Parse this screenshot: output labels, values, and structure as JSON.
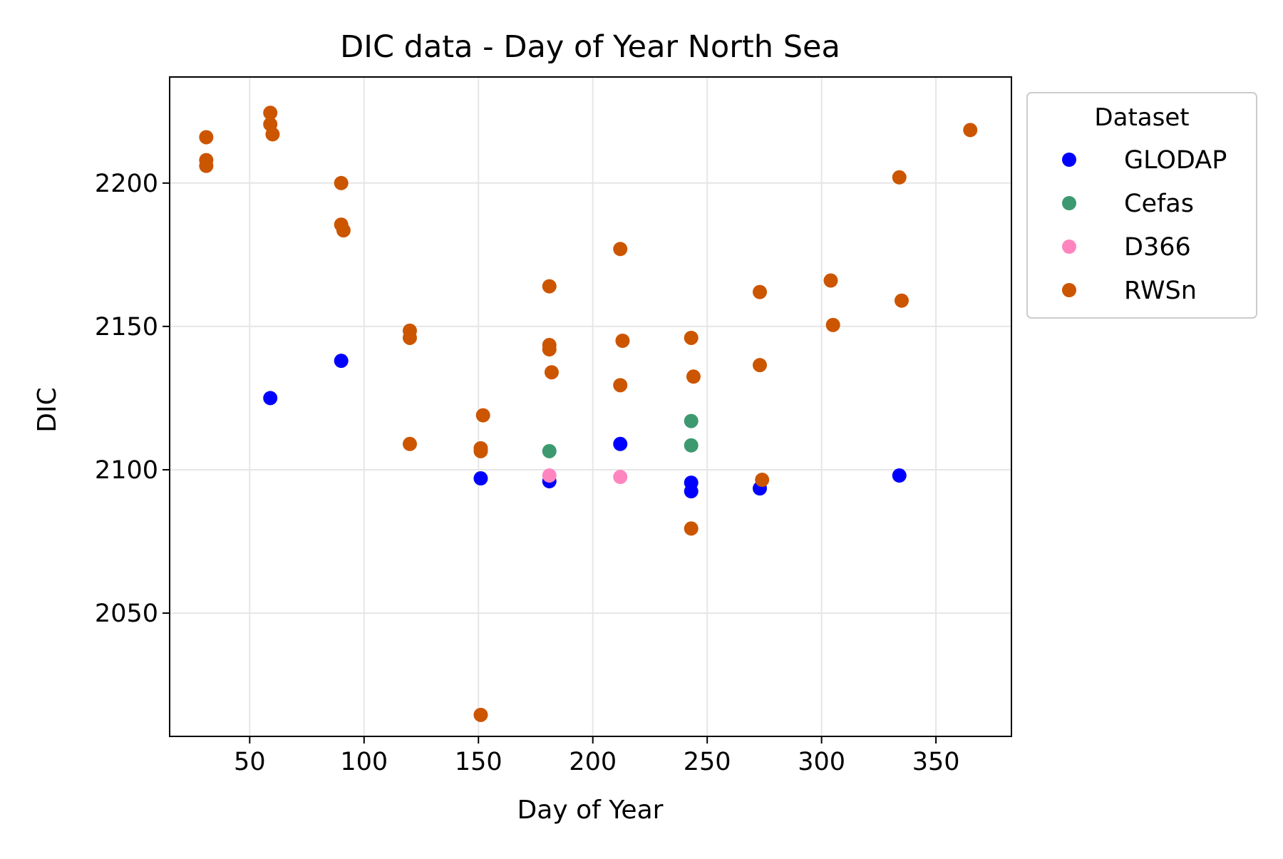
{
  "chart_data": {
    "type": "scatter",
    "title": "DIC data - Day of Year North Sea",
    "xlabel": "Day of Year",
    "ylabel": "DIC",
    "xlim": [
      15,
      383
    ],
    "ylim": [
      2007,
      2237
    ],
    "xticks": [
      50,
      100,
      150,
      200,
      250,
      300,
      350
    ],
    "yticks": [
      2050,
      2100,
      2150,
      2200
    ],
    "grid": true,
    "legend": {
      "title": "Dataset",
      "placement": "upper-right-outside"
    },
    "series": [
      {
        "name": "GLODAP",
        "color": "#0000ff",
        "points": [
          [
            59,
            2125
          ],
          [
            90,
            2138
          ],
          [
            151,
            2097
          ],
          [
            181,
            2096
          ],
          [
            212,
            2109
          ],
          [
            243,
            2095.5
          ],
          [
            243,
            2092.5
          ],
          [
            273,
            2093.5
          ],
          [
            334,
            2098
          ]
        ]
      },
      {
        "name": "Cefas",
        "color": "#3d9970",
        "points": [
          [
            181,
            2106.5
          ],
          [
            243,
            2117
          ],
          [
            243,
            2108.5
          ]
        ]
      },
      {
        "name": "D366",
        "color": "#ff85c0",
        "points": [
          [
            181,
            2098
          ],
          [
            212,
            2097.5
          ]
        ]
      },
      {
        "name": "RWSn",
        "color": "#cc5500",
        "points": [
          [
            31,
            2216
          ],
          [
            31,
            2208
          ],
          [
            31,
            2206
          ],
          [
            59,
            2224.5
          ],
          [
            59,
            2220.5
          ],
          [
            60,
            2217
          ],
          [
            90,
            2200
          ],
          [
            90,
            2185.5
          ],
          [
            91,
            2183.5
          ],
          [
            120,
            2148.5
          ],
          [
            120,
            2146
          ],
          [
            120,
            2109
          ],
          [
            151,
            2107.5
          ],
          [
            151,
            2106.5
          ],
          [
            152,
            2119
          ],
          [
            151,
            2014.5
          ],
          [
            181,
            2164
          ],
          [
            181,
            2143.5
          ],
          [
            181,
            2142
          ],
          [
            182,
            2134
          ],
          [
            212,
            2177
          ],
          [
            213,
            2145
          ],
          [
            212,
            2129.5
          ],
          [
            243,
            2146
          ],
          [
            244,
            2132.5
          ],
          [
            243,
            2079.5
          ],
          [
            273,
            2162
          ],
          [
            273,
            2136.5
          ],
          [
            274,
            2096.5
          ],
          [
            304,
            2166
          ],
          [
            305,
            2150.5
          ],
          [
            334,
            2202
          ],
          [
            335,
            2159
          ],
          [
            365,
            2218.5
          ]
        ]
      }
    ]
  }
}
